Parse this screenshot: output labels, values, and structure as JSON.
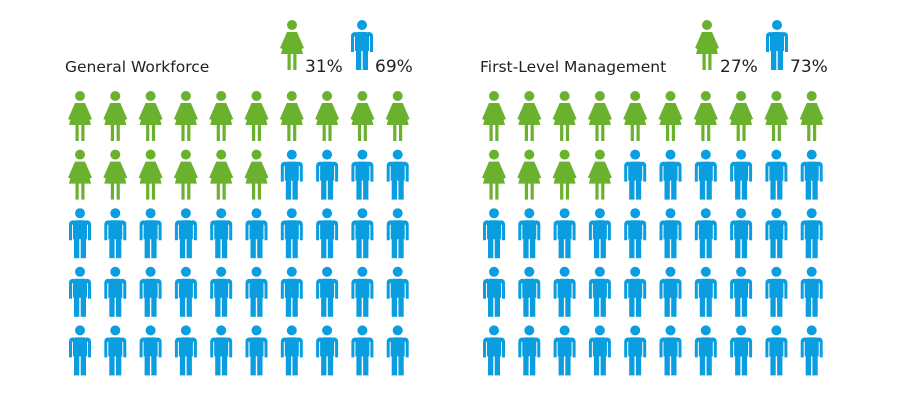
{
  "chart_data": [
    {
      "type": "pictograph",
      "title": "General Workforce",
      "categories": [
        "Female",
        "Male"
      ],
      "values": [
        31,
        69
      ],
      "value_labels": [
        "31%",
        "69%"
      ],
      "icon_counts": [
        16,
        34
      ],
      "total_icons": 50,
      "grid": {
        "rows": 5,
        "columns": 10
      }
    },
    {
      "type": "pictograph",
      "title": "First-Level Management",
      "categories": [
        "Female",
        "Male"
      ],
      "values": [
        27,
        73
      ],
      "value_labels": [
        "27%",
        "73%"
      ],
      "icon_counts": [
        14,
        36
      ],
      "total_icons": 50,
      "grid": {
        "rows": 5,
        "columns": 10
      }
    }
  ],
  "colors": {
    "female": "#6ab12e",
    "male": "#0a9ee0"
  },
  "icons": {
    "female": "female-person-icon",
    "male": "male-person-icon"
  }
}
